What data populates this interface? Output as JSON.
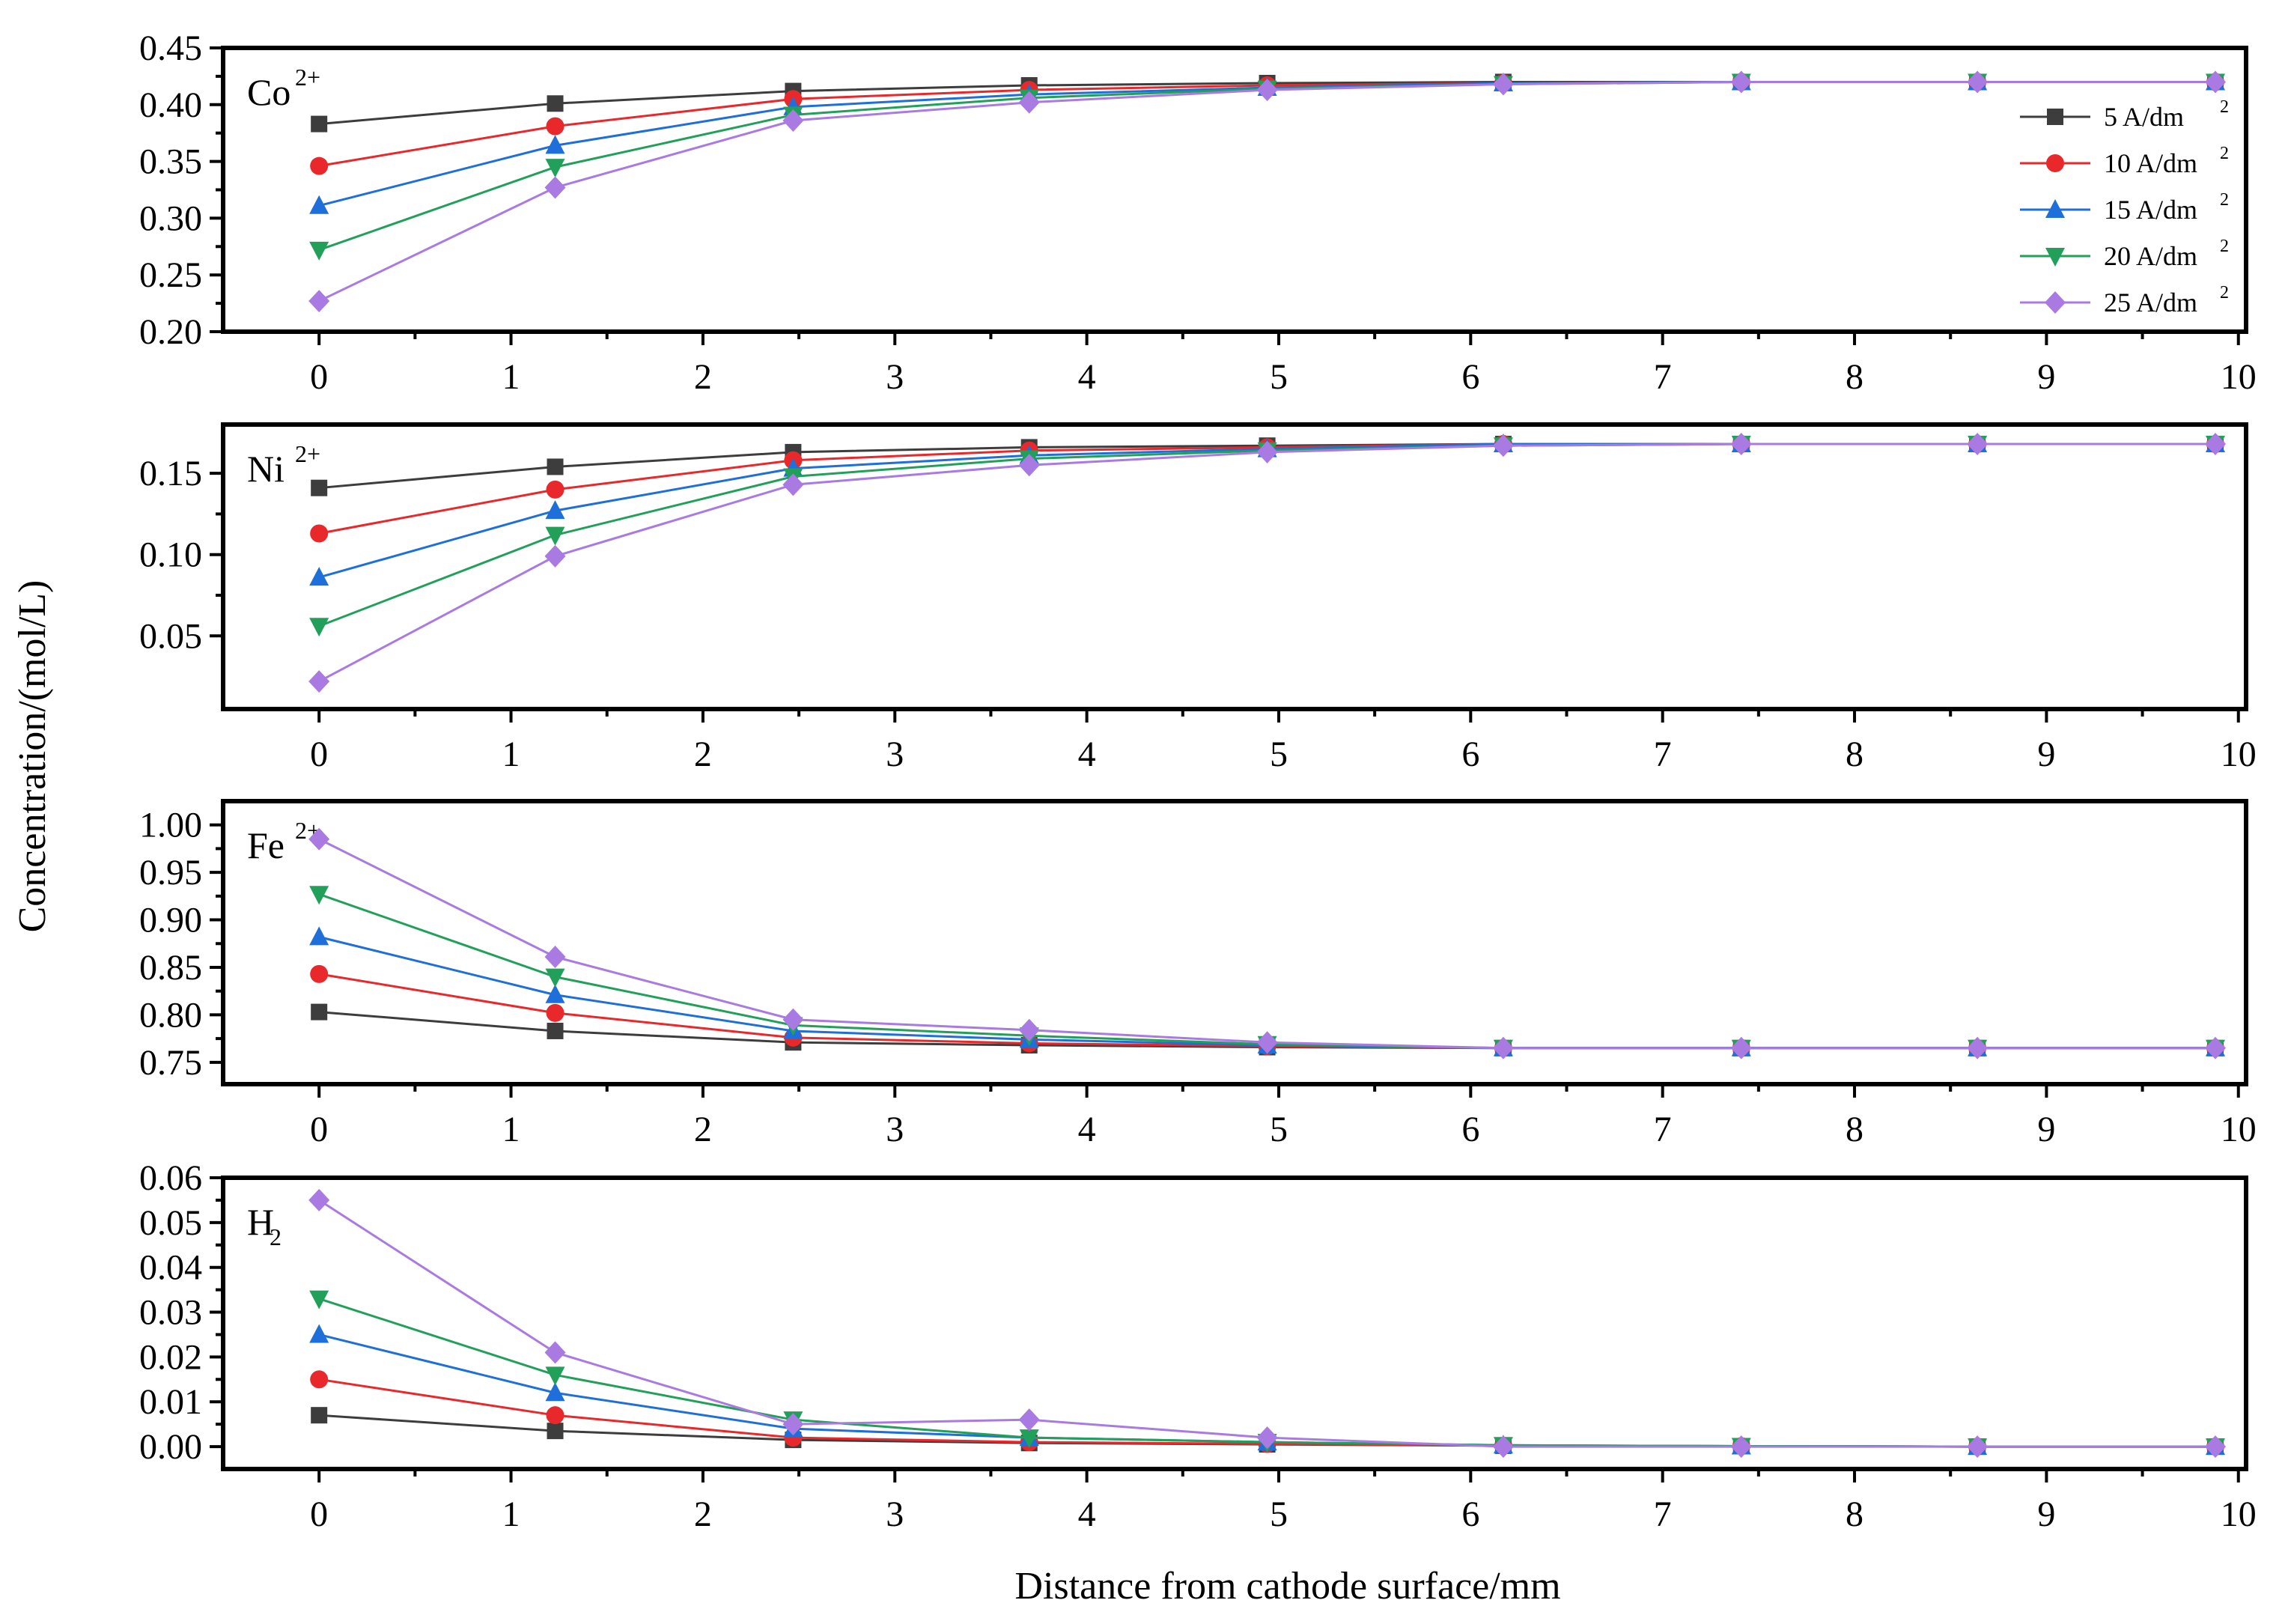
{
  "chart_data": {
    "type": "line",
    "x_title": "Distance from cathode surface/mm",
    "y_title": "Concentration/(mol/L)",
    "x_ticks": [
      0,
      1,
      2,
      3,
      4,
      5,
      6,
      7,
      8,
      9,
      10
    ],
    "x": [
      0,
      1.23,
      2.47,
      3.7,
      4.94,
      6.17,
      7.41,
      8.64,
      9.88
    ],
    "series_styles": [
      {
        "name": "5  A/dm",
        "unit_sup": "2",
        "color": "#3d3d3d",
        "marker": "square"
      },
      {
        "name": "10 A/dm",
        "unit_sup": "2",
        "color": "#e8282b",
        "marker": "circle"
      },
      {
        "name": "15 A/dm",
        "unit_sup": "2",
        "color": "#1e6fd9",
        "marker": "triangle-up"
      },
      {
        "name": "20 A/dm",
        "unit_sup": "2",
        "color": "#22a05a",
        "marker": "triangle-down"
      },
      {
        "name": "25 A/dm",
        "unit_sup": "2",
        "color": "#a97be2",
        "marker": "diamond"
      }
    ],
    "panels": [
      {
        "species": "Co",
        "sup": "2+",
        "ylim": [
          0.2,
          0.45
        ],
        "yticks": [
          0.2,
          0.25,
          0.3,
          0.35,
          0.4,
          0.45
        ],
        "ytick_labels": [
          "0.20",
          "0.25",
          "0.30",
          "0.35",
          "0.40",
          "0.45"
        ],
        "show_legend": true,
        "series": [
          {
            "name": "5  A/dm",
            "values": [
              0.383,
              0.401,
              0.412,
              0.417,
              0.419,
              0.42,
              0.42,
              0.42,
              0.42
            ]
          },
          {
            "name": "10 A/dm",
            "values": [
              0.346,
              0.381,
              0.405,
              0.413,
              0.417,
              0.419,
              0.42,
              0.42,
              0.42
            ]
          },
          {
            "name": "15 A/dm",
            "values": [
              0.311,
              0.364,
              0.398,
              0.409,
              0.415,
              0.419,
              0.42,
              0.42,
              0.42
            ]
          },
          {
            "name": "20 A/dm",
            "values": [
              0.272,
              0.345,
              0.391,
              0.406,
              0.414,
              0.418,
              0.42,
              0.42,
              0.42
            ]
          },
          {
            "name": "25 A/dm",
            "values": [
              0.227,
              0.327,
              0.386,
              0.402,
              0.413,
              0.418,
              0.42,
              0.42,
              0.42
            ]
          }
        ]
      },
      {
        "species": "Ni",
        "sup": "2+",
        "ylim": [
          0.005,
          0.18
        ],
        "yticks": [
          0.05,
          0.1,
          0.15
        ],
        "ytick_labels": [
          "0.05",
          "0.10",
          "0.15"
        ],
        "show_legend": false,
        "series": [
          {
            "name": "5  A/dm",
            "values": [
              0.141,
              0.154,
              0.163,
              0.166,
              0.167,
              0.168,
              0.168,
              0.168,
              0.168
            ]
          },
          {
            "name": "10 A/dm",
            "values": [
              0.113,
              0.14,
              0.158,
              0.164,
              0.166,
              0.168,
              0.168,
              0.168,
              0.168
            ]
          },
          {
            "name": "15 A/dm",
            "values": [
              0.086,
              0.127,
              0.153,
              0.161,
              0.165,
              0.168,
              0.168,
              0.168,
              0.168
            ]
          },
          {
            "name": "20 A/dm",
            "values": [
              0.056,
              0.112,
              0.148,
              0.159,
              0.164,
              0.167,
              0.168,
              0.168,
              0.168
            ]
          },
          {
            "name": "25 A/dm",
            "values": [
              0.022,
              0.099,
              0.143,
              0.155,
              0.163,
              0.167,
              0.168,
              0.168,
              0.168
            ]
          }
        ]
      },
      {
        "species": "Fe",
        "sup": "2+",
        "ylim": [
          0.727,
          1.025
        ],
        "yticks": [
          0.75,
          0.8,
          0.85,
          0.9,
          0.95,
          1.0
        ],
        "ytick_labels": [
          "0.75",
          "0.80",
          "0.85",
          "0.90",
          "0.95",
          "1.00"
        ],
        "show_legend": false,
        "series": [
          {
            "name": "5  A/dm",
            "values": [
              0.803,
              0.783,
              0.771,
              0.768,
              0.766,
              0.765,
              0.765,
              0.765,
              0.765
            ]
          },
          {
            "name": "10 A/dm",
            "values": [
              0.843,
              0.802,
              0.776,
              0.77,
              0.767,
              0.765,
              0.765,
              0.765,
              0.765
            ]
          },
          {
            "name": "15 A/dm",
            "values": [
              0.882,
              0.821,
              0.783,
              0.774,
              0.768,
              0.765,
              0.765,
              0.765,
              0.765
            ]
          },
          {
            "name": "20 A/dm",
            "values": [
              0.927,
              0.84,
              0.789,
              0.778,
              0.769,
              0.765,
              0.765,
              0.765,
              0.765
            ]
          },
          {
            "name": "25 A/dm",
            "values": [
              0.985,
              0.861,
              0.795,
              0.784,
              0.771,
              0.765,
              0.765,
              0.765,
              0.765
            ]
          }
        ]
      },
      {
        "species": "H",
        "sub": "2",
        "ylim": [
          -0.005,
          0.06
        ],
        "yticks": [
          0.0,
          0.01,
          0.02,
          0.03,
          0.04,
          0.05,
          0.06
        ],
        "ytick_labels": [
          "0.00",
          "0.01",
          "0.02",
          "0.03",
          "0.04",
          "0.05",
          "0.06"
        ],
        "show_legend": false,
        "series": [
          {
            "name": "5  A/dm",
            "values": [
              0.007,
              0.0035,
              0.0015,
              0.0008,
              0.0005,
              0.0002,
              0.0001,
              0.0,
              0.0
            ]
          },
          {
            "name": "10 A/dm",
            "values": [
              0.015,
              0.007,
              0.002,
              0.001,
              0.0006,
              0.0002,
              0.0001,
              0.0,
              0.0
            ]
          },
          {
            "name": "15 A/dm",
            "values": [
              0.025,
              0.012,
              0.004,
              0.002,
              0.001,
              0.0003,
              0.0001,
              0.0,
              0.0
            ]
          },
          {
            "name": "20 A/dm",
            "values": [
              0.033,
              0.016,
              0.006,
              0.002,
              0.001,
              0.0003,
              0.0001,
              0.0,
              0.0
            ]
          },
          {
            "name": "25 A/dm",
            "values": [
              0.055,
              0.021,
              0.005,
              0.006,
              0.002,
              0.0,
              0.0,
              0.0,
              0.0
            ]
          }
        ]
      }
    ]
  }
}
